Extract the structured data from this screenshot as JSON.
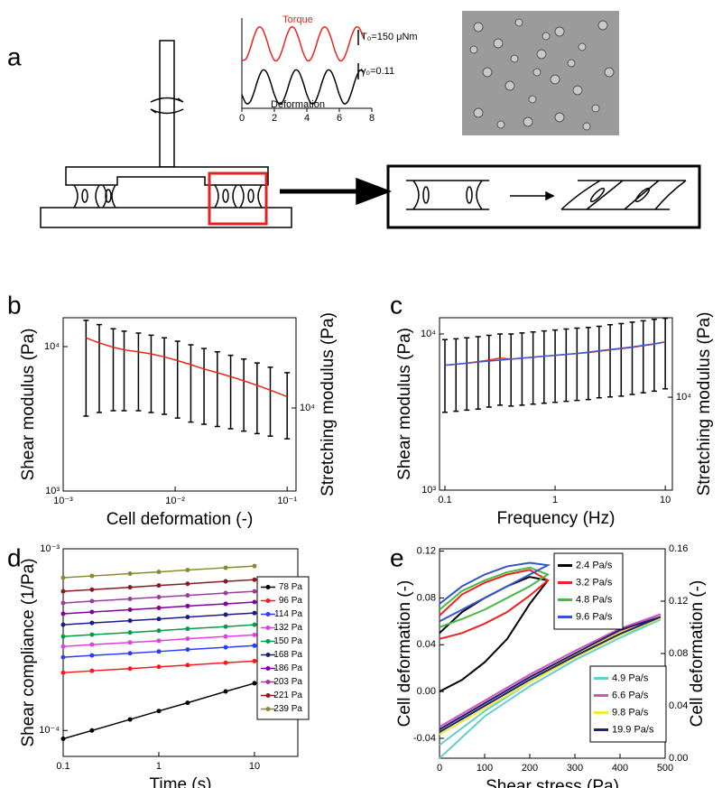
{
  "chart_data": [
    {
      "panel": "a",
      "type": "line",
      "smooth": true,
      "x": [
        0,
        0.25,
        0.5,
        0.75,
        1,
        1.25,
        1.5,
        1.75,
        2,
        2.25,
        2.5,
        2.75,
        3,
        3.25,
        3.5,
        3.75,
        4,
        4.25,
        4.5,
        4.75,
        5,
        5.25,
        5.5,
        5.75,
        6,
        6.25,
        6.5,
        6.75,
        7,
        7.25,
        7.5
      ],
      "xlim": [
        0,
        8
      ],
      "xticks": [
        0,
        2,
        4,
        6,
        8
      ],
      "ylim": [
        -2,
        2.2
      ],
      "series": [
        {
          "color": "#e8251c",
          "values": [
            0.24,
            0.29,
            0.75,
            1.36,
            1.76,
            1.71,
            1.25,
            0.64,
            0.24,
            0.29,
            0.75,
            1.36,
            1.76,
            1.71,
            1.25,
            0.64,
            0.24,
            0.29,
            0.75,
            1.36,
            1.76,
            1.71,
            1.25,
            0.64,
            0.24,
            0.29,
            0.75,
            1.36,
            1.76,
            1.71,
            1.25
          ]
        },
        {
          "color": "#000000",
          "values": [
            -1.36,
            -1.76,
            -1.71,
            -1.25,
            -0.64,
            -0.24,
            -0.29,
            -0.75,
            -1.36,
            -1.76,
            -1.71,
            -1.25,
            -0.64,
            -0.24,
            -0.29,
            -0.75,
            -1.36,
            -1.76,
            -1.71,
            -1.25,
            -0.64,
            -0.24,
            -0.29,
            -0.75,
            -1.36,
            -1.76,
            -1.71,
            -1.25,
            -0.64,
            -0.24,
            -0.29
          ]
        }
      ],
      "annotations": [
        "Torque",
        "T₀=150 μNm",
        "γ₀=0.11",
        "Deformation"
      ]
    },
    {
      "panel": "b",
      "type": "line",
      "x": [
        0.0016,
        0.0021,
        0.0028,
        0.0035,
        0.0047,
        0.0061,
        0.008,
        0.0105,
        0.0138,
        0.0181,
        0.0238,
        0.0313,
        0.041,
        0.0539,
        0.0707,
        0.1
      ],
      "xlim": [
        0.001,
        0.12
      ],
      "xlog": true,
      "xticks": [
        {
          "value": 0.001,
          "label": "10⁻³"
        },
        {
          "value": 0.01,
          "label": "10⁻²"
        },
        {
          "value": 0.1,
          "label": "10⁻¹"
        }
      ],
      "ylim": [
        1000,
        15850
      ],
      "ylog": true,
      "yticks": [
        {
          "value": 1000,
          "label": "10³"
        },
        {
          "value": 10000,
          "label": "10⁴"
        }
      ],
      "y2lim": [
        2660,
        42200
      ],
      "y2log": true,
      "y2ticks": [
        {
          "value": 10000,
          "label": "10⁴"
        }
      ],
      "x_label": "Cell deformation (-)",
      "y_label": "Shear modulus (Pa)",
      "y2_label": "Stretching modulus (Pa)",
      "series": [
        {
          "color": "#e8251c",
          "values": [
            11500,
            10600,
            9900,
            9500,
            9200,
            8900,
            8500,
            8000,
            7500,
            7000,
            6600,
            6200,
            5800,
            5400,
            5000,
            4500
          ],
          "error_low": [
            3300,
            3500,
            3600,
            3600,
            3600,
            3500,
            3400,
            3200,
            3000,
            2900,
            2800,
            2700,
            2600,
            2500,
            2400,
            2300
          ],
          "error_high": [
            15200,
            14200,
            13300,
            12800,
            12400,
            12000,
            11500,
            10900,
            10300,
            9700,
            9200,
            8700,
            8200,
            7700,
            7200,
            6600
          ]
        }
      ]
    },
    {
      "panel": "c",
      "type": "line",
      "x": [
        0.1,
        0.126,
        0.158,
        0.2,
        0.251,
        0.316,
        0.398,
        0.501,
        0.631,
        0.794,
        1,
        1.26,
        1.58,
        2,
        2.51,
        3.16,
        3.98,
        5.01,
        6.31,
        7.94,
        10
      ],
      "xlim": [
        0.0893,
        11.6
      ],
      "xlog": true,
      "xticks": [
        0.1,
        1,
        10
      ],
      "ylim": [
        1000,
        12700
      ],
      "ylog": true,
      "yticks": [
        {
          "value": 1000,
          "label": "10³"
        },
        {
          "value": 10000,
          "label": "10⁴"
        }
      ],
      "y2lim": [
        2540,
        32300
      ],
      "y2log": true,
      "y2ticks": [
        {
          "value": 10000,
          "label": "10⁴"
        }
      ],
      "x_label": "Frequency (Hz)",
      "y_label": "Shear modulus (Pa)",
      "y2_label": "Stretching modulus (Pa)",
      "series": [
        {
          "color": "#e8251c",
          "values": [
            6300,
            6400,
            6500,
            6650,
            6800,
            7000,
            6900,
            7000,
            7100,
            7200,
            7300,
            7400,
            7500,
            7600,
            7750,
            7900,
            8050,
            8200,
            8400,
            8600,
            8900
          ],
          "error_low": [
            3150,
            3200,
            3250,
            3300,
            3400,
            3500,
            3450,
            3500,
            3550,
            3600,
            3650,
            3700,
            3750,
            3800,
            3900,
            3950,
            4000,
            4100,
            4200,
            4300,
            4450
          ],
          "error_high": [
            9200,
            9300,
            9450,
            9600,
            9800,
            10000,
            10000,
            10150,
            10300,
            10450,
            10600,
            10750,
            10900,
            11000,
            11200,
            11450,
            11650,
            11900,
            12150,
            12400,
            12600
          ]
        },
        {
          "color": "#3b5bd6",
          "values": [
            6300,
            6400,
            6500,
            6600,
            6700,
            6800,
            6900,
            7000,
            7100,
            7200,
            7300,
            7400,
            7500,
            7650,
            7800,
            7950,
            8100,
            8250,
            8450,
            8650,
            8900
          ]
        }
      ]
    },
    {
      "panel": "d",
      "type": "line",
      "markers": true,
      "x": [
        0.1,
        0.2,
        0.5,
        1,
        2,
        5,
        10
      ],
      "xlim": [
        0.1,
        28.4
      ],
      "xlog": true,
      "xticks": [
        0.1,
        1,
        10
      ],
      "ylim": [
        7.2e-05,
        0.001
      ],
      "ylog": true,
      "yticks": [
        {
          "value": 0.0001,
          "label": "10⁻⁴"
        },
        {
          "value": 0.001,
          "label": "10⁻³"
        }
      ],
      "x_label": "Time (s)",
      "y_label": "Shear compliance (1/Pa)",
      "legend": "center right",
      "series": [
        {
          "name": "78 Pa",
          "color": "#000000",
          "values": [
            9e-05,
            0.0001,
            0.000115,
            0.000128,
            0.000142,
            0.000164,
            0.000182
          ]
        },
        {
          "name": "96 Pa",
          "color": "#ff1a1a",
          "values": [
            0.000208,
            0.000213,
            0.000219,
            0.000224,
            0.000229,
            0.000236,
            0.000241
          ]
        },
        {
          "name": "114 Pa",
          "color": "#2a3cff",
          "values": [
            0.000253,
            0.000259,
            0.000266,
            0.000272,
            0.000279,
            0.000287,
            0.000293
          ]
        },
        {
          "name": "132 Pa",
          "color": "#e040e0",
          "values": [
            0.00029,
            0.000297,
            0.000305,
            0.000312,
            0.00032,
            0.000329,
            0.000336
          ]
        },
        {
          "name": "150 Pa",
          "color": "#00a040",
          "values": [
            0.000329,
            0.000337,
            0.000346,
            0.000354,
            0.000363,
            0.000373,
            0.000382
          ]
        },
        {
          "name": "168 Pa",
          "color": "#1a1a8c",
          "values": [
            0.000382,
            0.000391,
            0.000402,
            0.000411,
            0.000421,
            0.000434,
            0.000443
          ]
        },
        {
          "name": "186 Pa",
          "color": "#8000a0",
          "values": [
            0.000439,
            0.000449,
            0.000462,
            0.000473,
            0.000484,
            0.000498,
            0.000509
          ]
        },
        {
          "name": "203 Pa",
          "color": "#9c3c9c",
          "values": [
            0.000503,
            0.000515,
            0.00053,
            0.000542,
            0.000554,
            0.000571,
            0.000583
          ]
        },
        {
          "name": "221 Pa",
          "color": "#8b1a1a",
          "values": [
            0.000583,
            0.000596,
            0.000614,
            0.000628,
            0.000642,
            0.000662,
            0.000676
          ]
        },
        {
          "name": "239 Pa",
          "color": "#8a8a30",
          "values": [
            0.000693,
            0.000709,
            0.00073,
            0.000746,
            0.000764,
            0.000787,
            0.000804
          ]
        }
      ]
    },
    {
      "panel": "e",
      "type": "line",
      "xlim": [
        0,
        500
      ],
      "xticks": [
        0,
        100,
        200,
        300,
        400,
        500
      ],
      "ylim": [
        -0.057,
        0.122
      ],
      "yticks": [
        -0.04,
        {
          "value": 0,
          "label": "0.00"
        },
        0.04,
        0.08,
        0.12
      ],
      "y2lim": [
        0,
        0.16
      ],
      "y2ticks": [
        {
          "value": 0,
          "label": "0.00"
        },
        0.04,
        0.08,
        0.12,
        0.16
      ],
      "x_label": "Shear stress (Pa)",
      "y_label": "Cell deformation (-)",
      "y2_label": "Cell deformation (-)",
      "legend": "upper center",
      "legend2": "lower right",
      "series": [
        {
          "name": "2.4 Pa/s",
          "color": "#000000",
          "x": [
            0,
            50,
            100,
            150,
            200,
            240,
            200,
            150,
            100,
            50,
            0
          ],
          "values": [
            0,
            0.01,
            0.025,
            0.045,
            0.075,
            0.095,
            0.098,
            0.09,
            0.08,
            0.068,
            0.05
          ]
        },
        {
          "name": "3.2 Pa/s",
          "color": "#ee2222",
          "x": [
            0,
            50,
            100,
            150,
            200,
            240,
            200,
            150,
            100,
            50,
            0
          ],
          "values": [
            0.045,
            0.05,
            0.058,
            0.068,
            0.082,
            0.095,
            0.104,
            0.1,
            0.093,
            0.083,
            0.065
          ]
        },
        {
          "name": "4.8 Pa/s",
          "color": "#44bb44",
          "x": [
            0,
            50,
            100,
            150,
            200,
            240,
            200,
            150,
            100,
            50,
            0
          ],
          "values": [
            0.055,
            0.062,
            0.07,
            0.08,
            0.09,
            0.1,
            0.106,
            0.102,
            0.095,
            0.086,
            0.07
          ]
        },
        {
          "name": "9.6 Pa/s",
          "color": "#3355cc",
          "x": [
            0,
            50,
            100,
            150,
            200,
            240,
            200,
            150,
            100,
            50,
            0
          ],
          "values": [
            0.06,
            0.07,
            0.08,
            0.09,
            0.1,
            0.108,
            0.11,
            0.107,
            0.1,
            0.09,
            0.075
          ]
        },
        {
          "name": "4.9 Pa/s",
          "color": "#66cccc",
          "axis": "y2",
          "x": [
            0,
            100,
            200,
            300,
            400,
            490,
            400,
            300,
            200,
            100,
            0
          ],
          "values": [
            0,
            0.032,
            0.055,
            0.075,
            0.092,
            0.106,
            0.094,
            0.077,
            0.058,
            0.036,
            0.01
          ]
        },
        {
          "name": "6.6 Pa/s",
          "color": "#cc55bb",
          "axis": "y2",
          "x": [
            0,
            100,
            200,
            300,
            400,
            490,
            400,
            300,
            200,
            100,
            0
          ],
          "values": [
            0.022,
            0.042,
            0.062,
            0.08,
            0.097,
            0.11,
            0.099,
            0.082,
            0.064,
            0.044,
            0.024
          ]
        },
        {
          "name": "9.8 Pa/s",
          "color": "#eeee33",
          "axis": "y2",
          "x": [
            0,
            100,
            200,
            300,
            400,
            490,
            400,
            300,
            200,
            100,
            0
          ],
          "values": [
            0.018,
            0.038,
            0.058,
            0.077,
            0.094,
            0.107,
            0.096,
            0.079,
            0.06,
            0.04,
            0.02
          ]
        },
        {
          "name": "19.9 Pa/s",
          "color": "#22226e",
          "axis": "y2",
          "x": [
            0,
            100,
            200,
            300,
            400,
            490,
            400,
            300,
            200,
            100,
            0
          ],
          "values": [
            0.02,
            0.04,
            0.06,
            0.078,
            0.095,
            0.108,
            0.098,
            0.08,
            0.062,
            0.042,
            0.022
          ]
        }
      ]
    }
  ]
}
